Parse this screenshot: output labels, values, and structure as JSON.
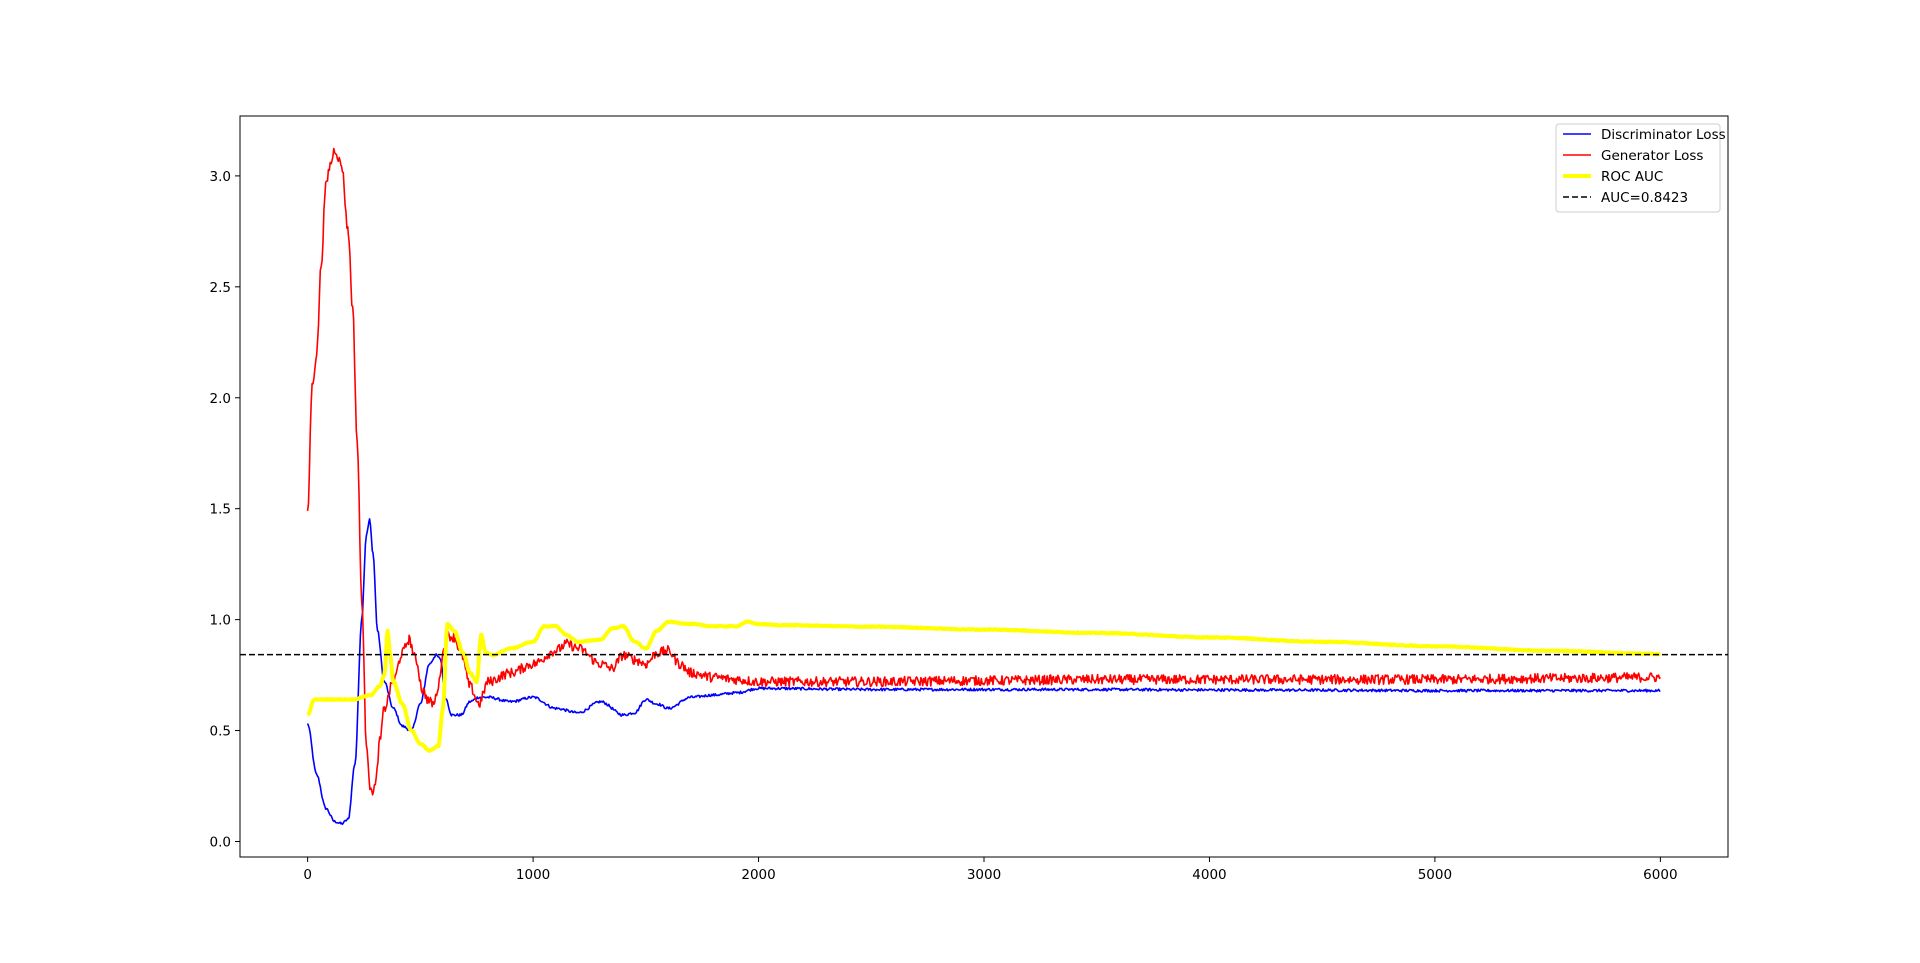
{
  "chart_data": {
    "type": "line",
    "title": "",
    "xlabel": "",
    "ylabel": "",
    "xlim": [
      -300,
      6300
    ],
    "ylim": [
      -0.07,
      3.27
    ],
    "xticks": [
      0,
      1000,
      2000,
      3000,
      4000,
      5000,
      6000
    ],
    "xtick_labels": [
      "0",
      "1000",
      "2000",
      "3000",
      "4000",
      "5000",
      "6000"
    ],
    "yticks": [
      0.0,
      0.5,
      1.0,
      1.5,
      2.0,
      2.5,
      3.0
    ],
    "ytick_labels": [
      "0.0",
      "0.5",
      "1.0",
      "1.5",
      "2.0",
      "2.5",
      "3.0"
    ],
    "grid": false,
    "legend_position": "top-right",
    "series": [
      {
        "name": "Discriminator Loss",
        "color": "#0000ff",
        "style": "solid",
        "noise": 0.006,
        "x": [
          0,
          40,
          80,
          120,
          150,
          180,
          210,
          240,
          260,
          275,
          290,
          310,
          340,
          380,
          420,
          460,
          500,
          540,
          570,
          590,
          610,
          640,
          680,
          720,
          760,
          800,
          900,
          1000,
          1100,
          1200,
          1300,
          1400,
          1450,
          1500,
          1550,
          1600,
          1700,
          1800,
          1900,
          2000,
          2500,
          3000,
          3500,
          4000,
          4500,
          5000,
          5500,
          6000
        ],
        "y": [
          0.53,
          0.3,
          0.15,
          0.09,
          0.08,
          0.1,
          0.35,
          1.0,
          1.38,
          1.45,
          1.3,
          0.95,
          0.72,
          0.6,
          0.52,
          0.5,
          0.62,
          0.8,
          0.84,
          0.82,
          0.65,
          0.57,
          0.57,
          0.63,
          0.65,
          0.65,
          0.63,
          0.65,
          0.6,
          0.58,
          0.63,
          0.57,
          0.58,
          0.64,
          0.62,
          0.6,
          0.65,
          0.66,
          0.67,
          0.69,
          0.685,
          0.685,
          0.685,
          0.683,
          0.682,
          0.68,
          0.68,
          0.68
        ]
      },
      {
        "name": "Generator Loss",
        "color": "#ff0000",
        "style": "solid",
        "noise": 0.022,
        "x": [
          0,
          20,
          40,
          60,
          80,
          100,
          120,
          150,
          180,
          200,
          220,
          240,
          260,
          280,
          300,
          320,
          340,
          380,
          420,
          450,
          480,
          510,
          540,
          560,
          580,
          600,
          620,
          650,
          680,
          720,
          760,
          800,
          900,
          1000,
          1100,
          1150,
          1200,
          1300,
          1350,
          1400,
          1450,
          1500,
          1550,
          1600,
          1650,
          1700,
          1800,
          1900,
          2000,
          2500,
          3000,
          3500,
          4000,
          4500,
          5000,
          5500,
          6000
        ],
        "y": [
          1.47,
          2.05,
          2.2,
          2.6,
          2.95,
          3.05,
          3.12,
          3.05,
          2.75,
          2.4,
          1.8,
          1.1,
          0.45,
          0.22,
          0.25,
          0.45,
          0.6,
          0.72,
          0.85,
          0.91,
          0.82,
          0.68,
          0.63,
          0.62,
          0.7,
          0.85,
          0.93,
          0.92,
          0.85,
          0.7,
          0.62,
          0.72,
          0.76,
          0.8,
          0.86,
          0.89,
          0.87,
          0.8,
          0.78,
          0.84,
          0.82,
          0.8,
          0.85,
          0.86,
          0.8,
          0.76,
          0.74,
          0.73,
          0.72,
          0.72,
          0.725,
          0.73,
          0.73,
          0.73,
          0.73,
          0.735,
          0.74
        ]
      },
      {
        "name": "ROC AUC",
        "color": "#ffff00",
        "style": "solid",
        "thick": true,
        "noise": 0.002,
        "x": [
          0,
          30,
          100,
          200,
          280,
          320,
          340,
          355,
          365,
          380,
          420,
          460,
          500,
          540,
          580,
          600,
          620,
          650,
          690,
          720,
          750,
          770,
          790,
          820,
          900,
          1000,
          1050,
          1100,
          1150,
          1200,
          1300,
          1350,
          1400,
          1450,
          1500,
          1550,
          1600,
          1700,
          1800,
          1900,
          1950,
          2000,
          2100,
          2500,
          3000,
          3500,
          4000,
          4500,
          5000,
          5500,
          6000
        ],
        "y": [
          0.57,
          0.64,
          0.64,
          0.64,
          0.66,
          0.7,
          0.75,
          0.95,
          0.85,
          0.72,
          0.62,
          0.5,
          0.44,
          0.41,
          0.43,
          0.6,
          0.98,
          0.95,
          0.85,
          0.76,
          0.72,
          0.93,
          0.85,
          0.84,
          0.87,
          0.9,
          0.97,
          0.97,
          0.93,
          0.9,
          0.91,
          0.96,
          0.97,
          0.9,
          0.87,
          0.95,
          0.99,
          0.98,
          0.97,
          0.97,
          0.99,
          0.98,
          0.975,
          0.968,
          0.955,
          0.94,
          0.92,
          0.9,
          0.88,
          0.86,
          0.845
        ]
      },
      {
        "name": "AUC=0.8423",
        "color": "#000000",
        "style": "dashed",
        "constant": 0.8423
      }
    ]
  }
}
